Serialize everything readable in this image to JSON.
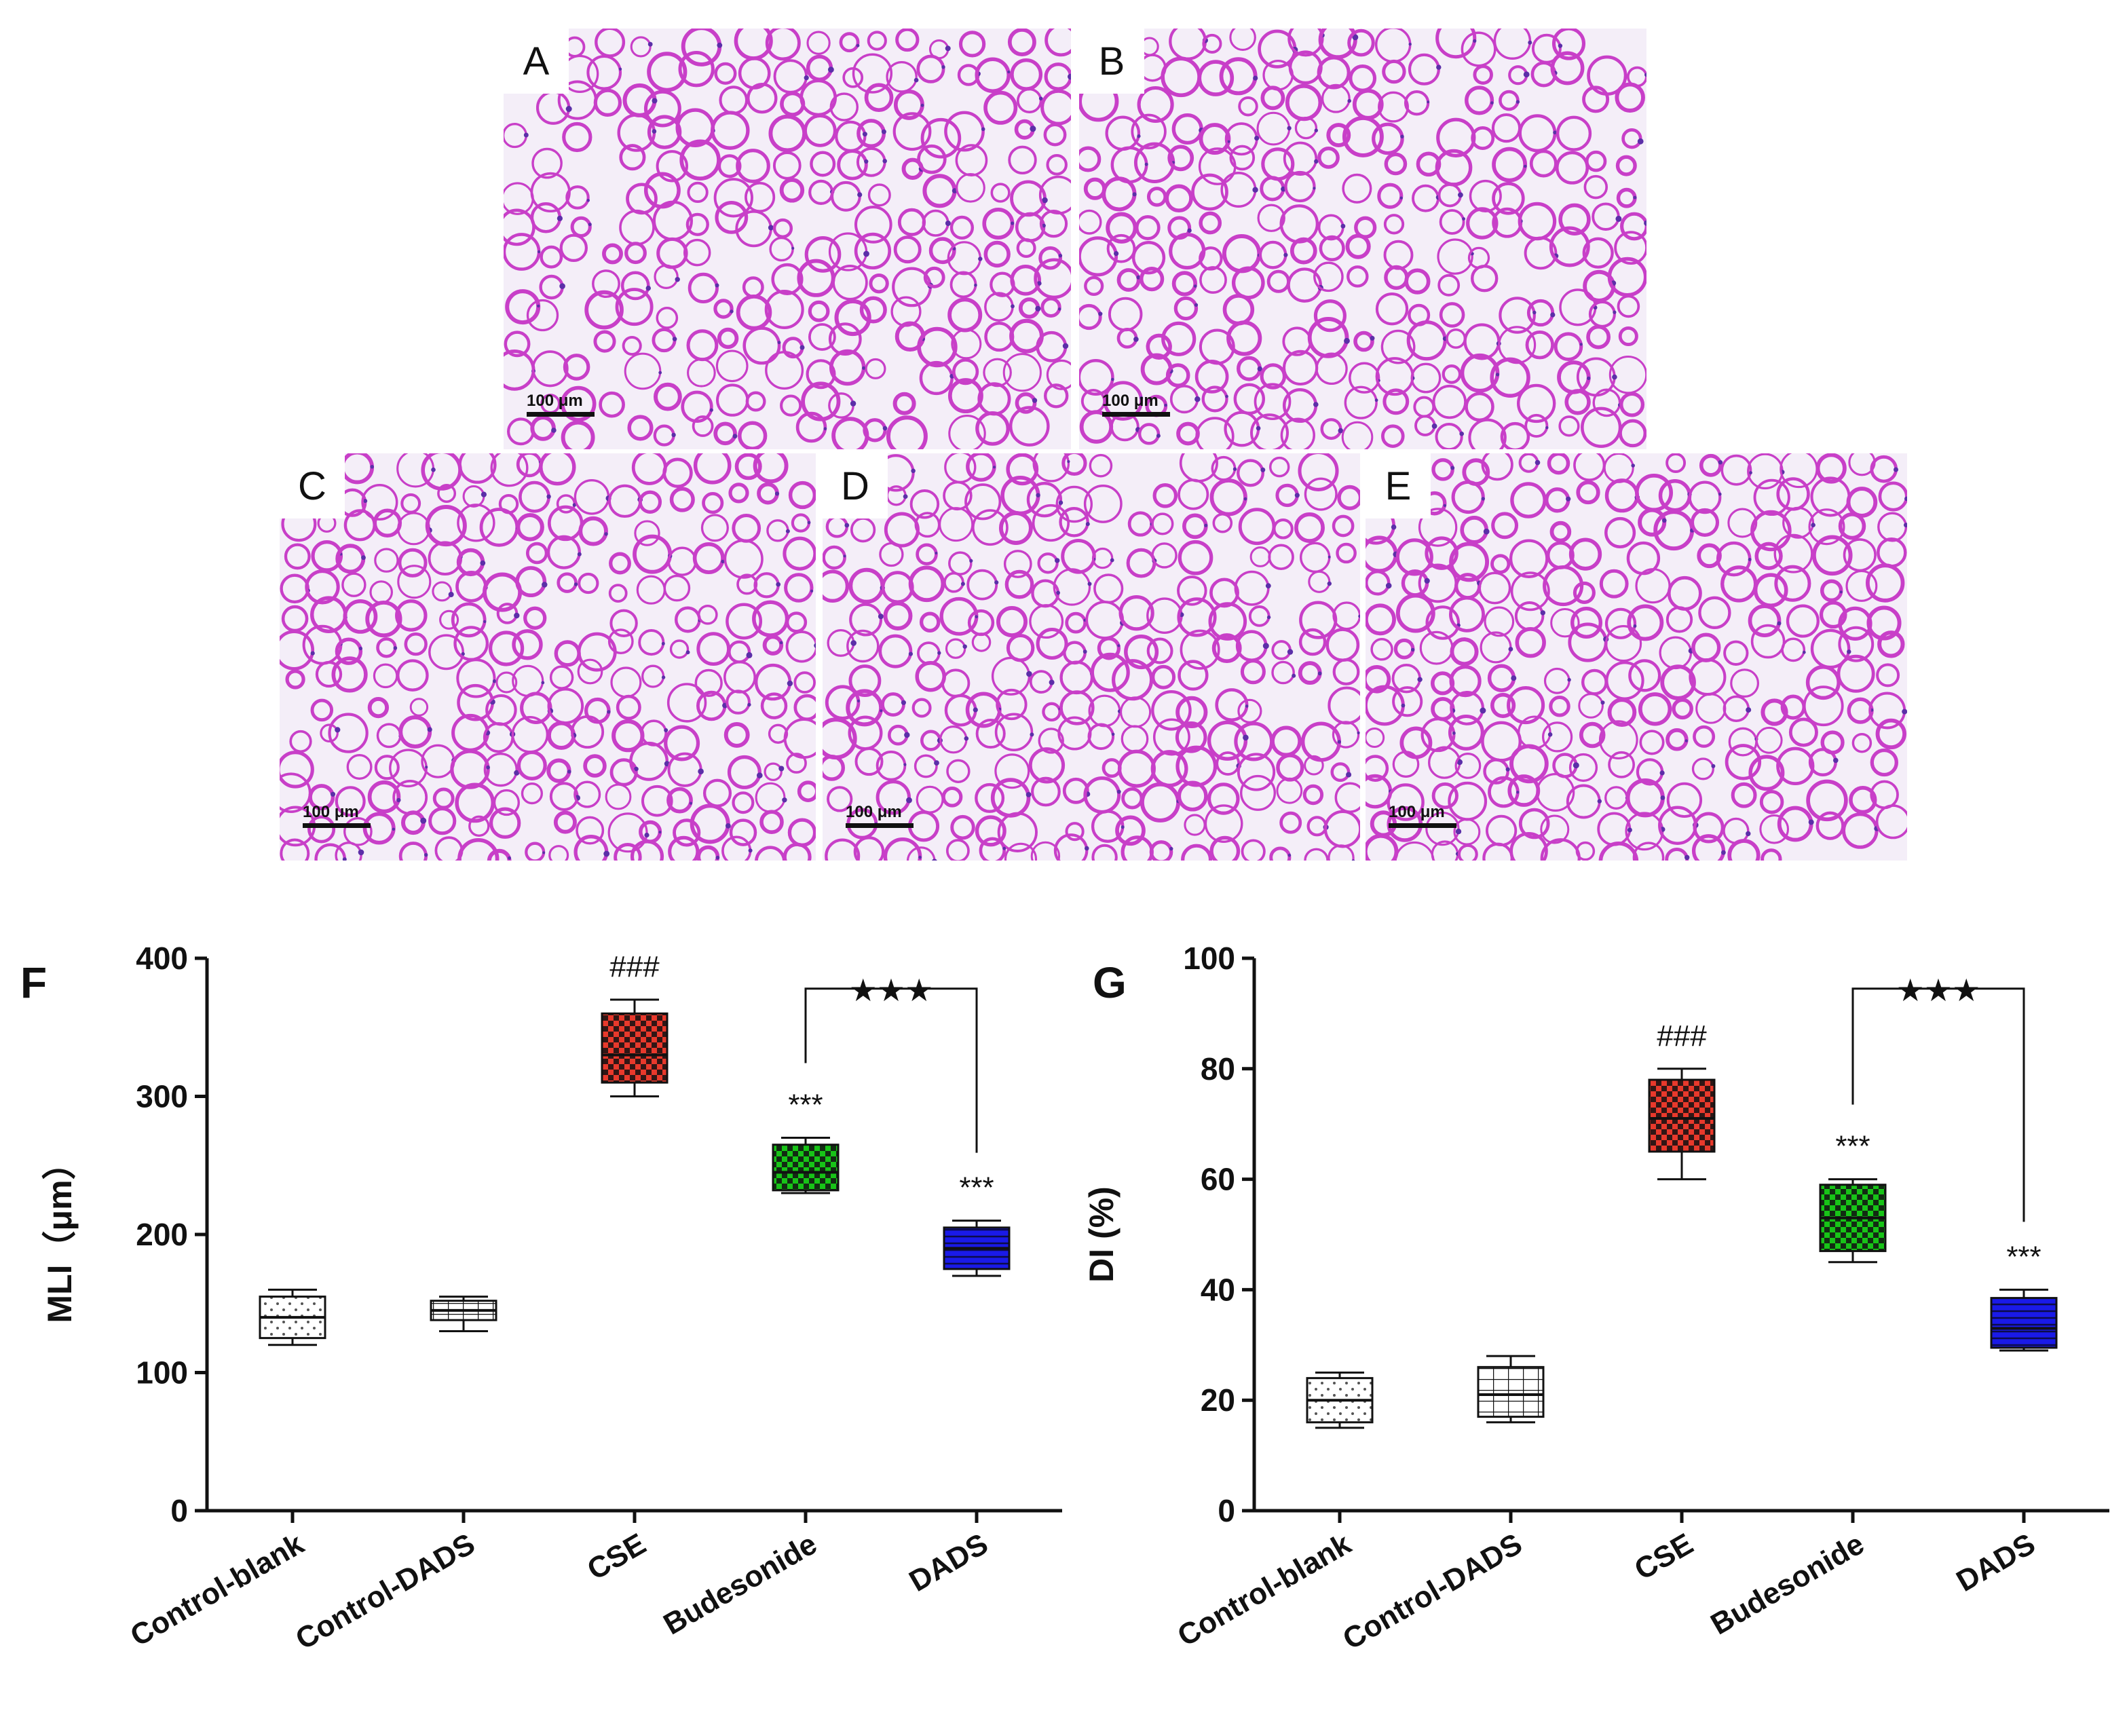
{
  "micrographs": [
    {
      "label": "A",
      "scale_text": "100 μm",
      "seed": 11
    },
    {
      "label": "B",
      "scale_text": "100 μm",
      "seed": 29
    },
    {
      "label": "C",
      "scale_text": "100 μm",
      "seed": 47
    },
    {
      "label": "D",
      "scale_text": "100 μm",
      "seed": 63
    },
    {
      "label": "E",
      "scale_text": "100 μm",
      "seed": 85
    }
  ],
  "colors": {
    "tissue": "#c83fc8",
    "nucleus": "#5b2fa8",
    "background": "#f4eef8"
  },
  "chart_data": [
    {
      "panel": "F",
      "type": "box",
      "ylabel": "MLI（μm）",
      "ylim": [
        0,
        400
      ],
      "yticks": [
        0,
        100,
        200,
        300,
        400
      ],
      "categories": [
        "Control-blank",
        "Control-DADS",
        "CSE",
        "Budesonide",
        "DADS"
      ],
      "boxes": [
        {
          "min": 120,
          "q1": 125,
          "median": 140,
          "q3": 155,
          "max": 160,
          "fill": "#ffffff",
          "pattern": "dots"
        },
        {
          "min": 130,
          "q1": 138,
          "median": 145,
          "q3": 152,
          "max": 155,
          "fill": "#ffffff",
          "pattern": "grid"
        },
        {
          "min": 300,
          "q1": 310,
          "median": 330,
          "q3": 360,
          "max": 370,
          "fill": "#e8392c",
          "pattern": "checks"
        },
        {
          "min": 230,
          "q1": 232,
          "median": 245,
          "q3": 265,
          "max": 270,
          "fill": "#18c418",
          "pattern": "checks"
        },
        {
          "min": 170,
          "q1": 175,
          "median": 190,
          "q3": 205,
          "max": 210,
          "fill": "#1a1ae8",
          "pattern": "hlines"
        }
      ],
      "annotations": [
        {
          "index": 2,
          "text": "###"
        },
        {
          "index": 3,
          "text": "***"
        },
        {
          "index": 4,
          "text": "***"
        }
      ],
      "bracket": {
        "from": 3,
        "to": 4,
        "text": "★★★",
        "y": 378
      }
    },
    {
      "panel": "G",
      "type": "box",
      "ylabel": "DI (%)",
      "ylim": [
        0,
        100
      ],
      "yticks": [
        0,
        20,
        40,
        60,
        80,
        100
      ],
      "categories": [
        "Control-blank",
        "Control-DADS",
        "CSE",
        "Budesonide",
        "DADS"
      ],
      "boxes": [
        {
          "min": 15,
          "q1": 16,
          "median": 20,
          "q3": 24,
          "max": 25,
          "fill": "#ffffff",
          "pattern": "dots"
        },
        {
          "min": 16,
          "q1": 17,
          "median": 21,
          "q3": 26,
          "max": 28,
          "fill": "#ffffff",
          "pattern": "grid"
        },
        {
          "min": 60,
          "q1": 65,
          "median": 71,
          "q3": 78,
          "max": 80,
          "fill": "#e8392c",
          "pattern": "checks"
        },
        {
          "min": 45,
          "q1": 47,
          "median": 53,
          "q3": 59,
          "max": 60,
          "fill": "#18c418",
          "pattern": "checks"
        },
        {
          "min": 29,
          "q1": 29.5,
          "median": 33,
          "q3": 38.5,
          "max": 40,
          "fill": "#1a1ae8",
          "pattern": "hlines"
        }
      ],
      "annotations": [
        {
          "index": 2,
          "text": "###"
        },
        {
          "index": 3,
          "text": "***"
        },
        {
          "index": 4,
          "text": "***"
        }
      ],
      "bracket": {
        "from": 3,
        "to": 4,
        "text": "★★★",
        "y": 94.5
      }
    }
  ]
}
